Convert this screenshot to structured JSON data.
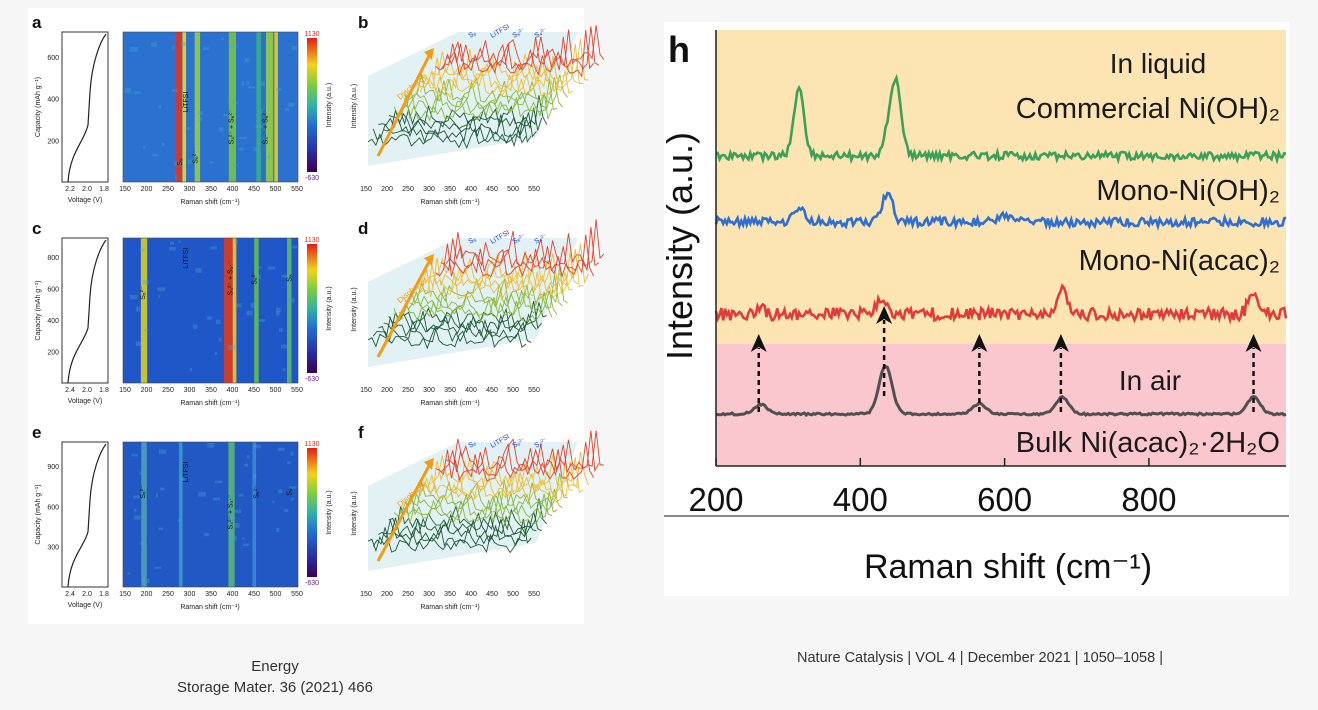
{
  "left_figure": {
    "panel_letters": [
      "a",
      "b",
      "c",
      "d",
      "e",
      "f"
    ],
    "voltage_axis": {
      "label": "Voltage (V)",
      "ticks": [
        "2.4",
        "2.0",
        "1.8"
      ],
      "ticks_top": [
        "2.2",
        "2.0",
        "1.8"
      ]
    },
    "capacity_axis": {
      "label": "Capacity (mAh g⁻¹)",
      "ticks_a": [
        "200",
        "400",
        "600"
      ],
      "ticks_c": [
        "200",
        "400",
        "600",
        "800"
      ],
      "ticks_e": [
        "300",
        "600",
        "900"
      ]
    },
    "raman_axis": {
      "label": "Raman shift (cm⁻¹)",
      "ticks": [
        "150",
        "200",
        "250",
        "300",
        "350",
        "400",
        "450",
        "500",
        "550"
      ]
    },
    "colorbar": {
      "max_label": "1130",
      "min_label": "-630",
      "label": "Intensity (a.u.)"
    },
    "contour_labels": {
      "lifsi": "LiTFSI",
      "s8": "S₈",
      "s4": "S₄²⁻",
      "s6": "S₆²⁻",
      "combo_a": "S₄²⁻ + S₆²⁻",
      "combo_b": "S₃·⁻ + S₆²⁻",
      "combo_c": "S₄²⁻ + S₃·⁻"
    },
    "waterfall": {
      "discharge_label": "Discharge",
      "ylabel": "Intensity (a.u.)"
    },
    "caption_line1": "Energy",
    "caption_line2": "Storage Mater. 36 (2021) 466"
  },
  "chart_data": {
    "type": "line",
    "panel_letter": "h",
    "title": "",
    "xlabel": "Raman shift (cm⁻¹)",
    "ylabel": "Intensity (a.u.)",
    "xlim": [
      200,
      990
    ],
    "xticks": [
      200,
      400,
      600,
      800
    ],
    "region_labels": [
      "In liquid",
      "In air"
    ],
    "series": [
      {
        "name": "Commercial Ni(OH)₂",
        "color": "#3aa05a",
        "region": "In liquid",
        "peaks": [
          [
            315,
            1.0
          ],
          [
            450,
            1.0
          ],
          [
            440,
            0.35
          ]
        ]
      },
      {
        "name": "Mono-Ni(OH)₂",
        "color": "#2e6fd4",
        "region": "In liquid",
        "peaks": [
          [
            315,
            0.35
          ],
          [
            438,
            0.8
          ],
          [
            600,
            0.15
          ]
        ]
      },
      {
        "name": "Mono-Ni(acac)₂",
        "color": "#e23b3b",
        "region": "In liquid",
        "peaks": [
          [
            260,
            0.15
          ],
          [
            430,
            0.45
          ],
          [
            680,
            0.55
          ],
          [
            945,
            0.5
          ]
        ]
      },
      {
        "name": "Bulk Ni(acac)₂·2H₂O",
        "color": "#505050",
        "region": "In air",
        "peaks": [
          [
            262,
            0.2
          ],
          [
            435,
            1.0
          ],
          [
            565,
            0.22
          ],
          [
            680,
            0.35
          ],
          [
            945,
            0.35
          ]
        ]
      }
    ],
    "arrow_positions": [
      262,
      433,
      565,
      678,
      945
    ],
    "caption": "Nature Catalysis | VOL 4 | December 2021 | 1050–1058 |"
  },
  "colors": {
    "liquid_bg": "#fde5b3",
    "air_bg": "#f9c7cd"
  }
}
